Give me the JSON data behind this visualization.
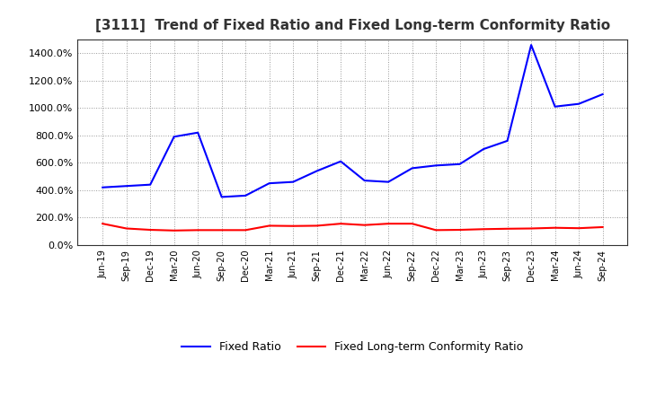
{
  "title": "[3111]  Trend of Fixed Ratio and Fixed Long-term Conformity Ratio",
  "x_labels": [
    "Jun-19",
    "Sep-19",
    "Dec-19",
    "Mar-20",
    "Jun-20",
    "Sep-20",
    "Dec-20",
    "Mar-21",
    "Jun-21",
    "Sep-21",
    "Dec-21",
    "Mar-22",
    "Jun-22",
    "Sep-22",
    "Dec-22",
    "Mar-23",
    "Jun-23",
    "Sep-23",
    "Dec-23",
    "Mar-24",
    "Jun-24",
    "Sep-24"
  ],
  "fixed_ratio": [
    420,
    430,
    440,
    790,
    820,
    350,
    360,
    450,
    460,
    540,
    610,
    470,
    460,
    560,
    580,
    590,
    700,
    760,
    1460,
    1010,
    1030,
    1100
  ],
  "fixed_lt_ratio": [
    155,
    120,
    110,
    105,
    108,
    108,
    108,
    140,
    138,
    140,
    155,
    145,
    155,
    155,
    108,
    110,
    115,
    118,
    120,
    125,
    122,
    130
  ],
  "fixed_ratio_color": "#0000FF",
  "fixed_lt_ratio_color": "#FF0000",
  "background_color": "#FFFFFF",
  "grid_color": "#999999",
  "ylim": [
    0,
    1500
  ],
  "yticks": [
    0,
    200,
    400,
    600,
    800,
    1000,
    1200,
    1400
  ],
  "legend_fixed_ratio": "Fixed Ratio",
  "legend_fixed_lt_ratio": "Fixed Long-term Conformity Ratio"
}
